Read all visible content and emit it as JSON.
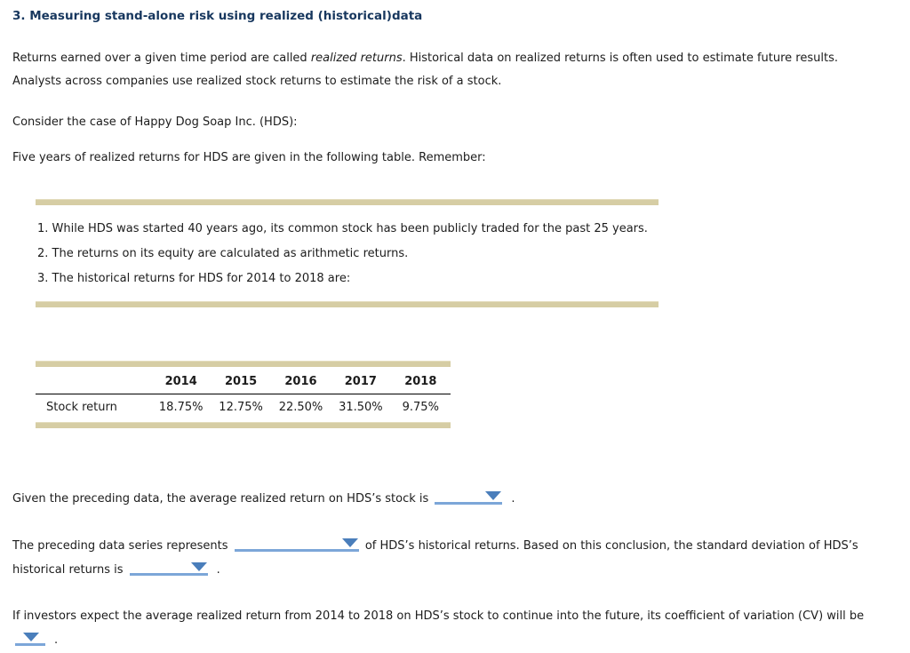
{
  "title": "3. Measuring stand-alone risk using realized (historical)data",
  "intro": {
    "pre": "Returns earned over a given time period are called ",
    "italic": "realized returns",
    "post1": ". Historical data on realized returns is often used to estimate future results.",
    "post2": "Analysts across companies use realized stock returns to estimate the risk of a stock."
  },
  "case_line": "Consider the case of Happy Dog Soap Inc. (HDS):",
  "table_lead": "Five years of realized returns for HDS are given in the following table. Remember:",
  "remember": {
    "items": [
      "1. While HDS was started 40 years ago, its common stock has been publicly traded for the past 25 years.",
      "2. The returns on its equity are calculated as arithmetic returns.",
      "3. The historical returns for HDS for 2014 to 2018 are:"
    ]
  },
  "returns_table": {
    "row_label": "Stock return",
    "years": [
      "2014",
      "2015",
      "2016",
      "2017",
      "2018"
    ],
    "values": [
      "18.75%",
      "12.75%",
      "22.50%",
      "31.50%",
      "9.75%"
    ]
  },
  "questions": {
    "q1": {
      "pre": "Given the preceding data, the average realized return on HDS’s stock is",
      "period": "."
    },
    "q2": {
      "pre": "The preceding data series represents",
      "mid1": "of HDS’s historical returns. Based on this conclusion, the standard deviation of HDS’s",
      "mid2": "historical returns is",
      "period": "."
    },
    "q3": {
      "pre": "If investors expect the average realized return from 2014 to 2018 on HDS’s stock to continue into the future, its coefficient of variation (CV) will be",
      "period": "."
    }
  },
  "colors": {
    "title_navy": "#17375E",
    "tan_bar": "#D6CDA4",
    "dropdown_line": "#7CA6D8",
    "dropdown_arrow": "#4A7EBB"
  }
}
